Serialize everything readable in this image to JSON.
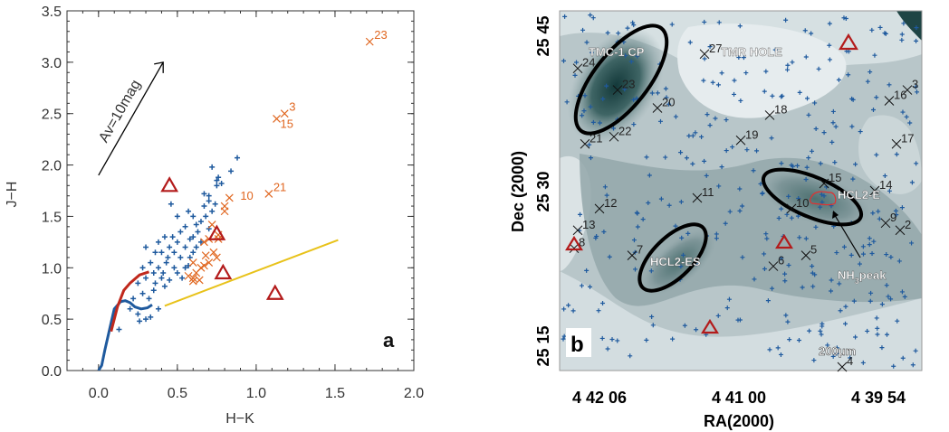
{
  "chart_data": [
    {
      "type": "scatter",
      "panel_label": "a",
      "xlabel": "H−K",
      "ylabel": "J−H",
      "xlim": [
        -0.2,
        2.0
      ],
      "ylim": [
        0.0,
        3.5
      ],
      "xticks": [
        "0.0",
        "0.5",
        "1.0",
        "1.5",
        "2.0"
      ],
      "xtick_values": [
        0.0,
        0.5,
        1.0,
        1.5,
        2.0
      ],
      "yticks": [
        "0.0",
        "0.5",
        "1.0",
        "1.5",
        "2.0",
        "2.5",
        "3.0",
        "3.5"
      ],
      "ytick_values": [
        0.0,
        0.5,
        1.0,
        1.5,
        2.0,
        2.5,
        3.0,
        3.5
      ],
      "reddening_vector": {
        "label": "Av=10mag",
        "from": [
          0.0,
          1.9
        ],
        "to": [
          0.41,
          3.0
        ]
      },
      "colors": {
        "field": "#1f5a9e",
        "yso": "#e0661f",
        "triangle": "#b31b1b",
        "dwarf": "#1f5a9e",
        "giant": "#c0281c",
        "ctts": "#e8c21a"
      },
      "series": [
        {
          "name": "field stars",
          "marker": "plus",
          "points": [
            [
              0.13,
              0.4
            ],
            [
              0.25,
              0.55
            ],
            [
              0.3,
              0.5
            ],
            [
              0.2,
              0.6
            ],
            [
              0.26,
              0.48
            ],
            [
              0.33,
              0.52
            ],
            [
              0.38,
              0.6
            ],
            [
              0.22,
              0.7
            ],
            [
              0.28,
              0.75
            ],
            [
              0.32,
              0.7
            ],
            [
              0.35,
              0.78
            ],
            [
              0.25,
              0.85
            ],
            [
              0.3,
              0.9
            ],
            [
              0.35,
              0.95
            ],
            [
              0.4,
              0.9
            ],
            [
              0.42,
              0.82
            ],
            [
              0.45,
              0.88
            ],
            [
              0.28,
              1.0
            ],
            [
              0.33,
              1.05
            ],
            [
              0.38,
              1.0
            ],
            [
              0.43,
              1.05
            ],
            [
              0.48,
              1.0
            ],
            [
              0.5,
              0.95
            ],
            [
              0.52,
              1.1
            ],
            [
              0.4,
              1.15
            ],
            [
              0.45,
              1.2
            ],
            [
              0.5,
              1.25
            ],
            [
              0.55,
              1.2
            ],
            [
              0.58,
              1.1
            ],
            [
              0.6,
              1.15
            ],
            [
              0.62,
              1.2
            ],
            [
              0.47,
              1.3
            ],
            [
              0.52,
              1.35
            ],
            [
              0.55,
              1.4
            ],
            [
              0.6,
              1.3
            ],
            [
              0.63,
              1.35
            ],
            [
              0.65,
              1.45
            ],
            [
              0.5,
              1.5
            ],
            [
              0.57,
              1.55
            ],
            [
              0.6,
              1.5
            ],
            [
              0.67,
              1.6
            ],
            [
              0.7,
              1.65
            ],
            [
              0.72,
              1.55
            ],
            [
              0.46,
              1.62
            ],
            [
              0.36,
              1.15
            ],
            [
              0.3,
              1.2
            ],
            [
              0.42,
              1.3
            ],
            [
              0.38,
              1.25
            ],
            [
              0.55,
              1.0
            ],
            [
              0.48,
              1.15
            ],
            [
              0.36,
              0.85
            ],
            [
              0.41,
              0.95
            ],
            [
              0.53,
              0.9
            ],
            [
              0.44,
              1.1
            ],
            [
              0.58,
              1.28
            ],
            [
              0.62,
              1.42
            ],
            [
              0.68,
              1.5
            ],
            [
              0.7,
              1.38
            ],
            [
              0.65,
              1.25
            ],
            [
              0.57,
              1.02
            ],
            [
              0.75,
              1.85
            ],
            [
              0.76,
              1.88
            ],
            [
              0.78,
              1.82
            ],
            [
              0.72,
              1.98
            ],
            [
              0.88,
              2.07
            ],
            [
              0.84,
              1.94
            ],
            [
              0.75,
              1.8
            ],
            [
              0.67,
              1.72
            ],
            [
              0.7,
              1.7
            ],
            [
              0.74,
              1.62
            ]
          ]
        },
        {
          "name": "YSO candidates",
          "marker": "x",
          "points": [
            [
              1.72,
              3.2
            ],
            [
              1.18,
              2.5
            ],
            [
              1.13,
              2.45
            ],
            [
              0.83,
              1.68
            ],
            [
              1.08,
              1.72
            ],
            [
              0.8,
              1.6
            ],
            [
              0.8,
              1.55
            ],
            [
              0.72,
              1.42
            ],
            [
              0.76,
              1.32
            ],
            [
              0.7,
              1.28
            ],
            [
              0.76,
              1.28
            ],
            [
              0.67,
              1.25
            ],
            [
              0.73,
              1.15
            ],
            [
              0.68,
              1.12
            ],
            [
              0.6,
              1.05
            ],
            [
              0.65,
              1.0
            ],
            [
              0.7,
              1.05
            ],
            [
              0.67,
              1.02
            ],
            [
              0.75,
              1.1
            ],
            [
              0.57,
              0.92
            ],
            [
              0.62,
              0.95
            ],
            [
              0.6,
              0.9
            ],
            [
              0.64,
              0.88
            ],
            [
              0.6,
              0.87
            ]
          ],
          "labels": [
            {
              "text": "23",
              "at": [
                1.72,
                3.2
              ]
            },
            {
              "text": "3",
              "at": [
                1.18,
                2.5
              ]
            },
            {
              "text": "15",
              "at": [
                1.13,
                2.45
              ]
            },
            {
              "text": "10",
              "at": [
                0.83,
                1.68
              ]
            },
            {
              "text": "21",
              "at": [
                1.08,
                1.72
              ]
            }
          ]
        },
        {
          "name": "triangles",
          "marker": "triangle",
          "points": [
            [
              0.45,
              1.8
            ],
            [
              0.75,
              1.33
            ],
            [
              0.79,
              0.95
            ],
            [
              1.12,
              0.75
            ]
          ]
        },
        {
          "name": "dwarf locus",
          "type": "line",
          "points": [
            [
              0.0,
              0.0
            ],
            [
              0.02,
              0.05
            ],
            [
              0.04,
              0.2
            ],
            [
              0.07,
              0.4
            ],
            [
              0.1,
              0.6
            ],
            [
              0.14,
              0.67
            ],
            [
              0.17,
              0.68
            ],
            [
              0.2,
              0.66
            ],
            [
              0.23,
              0.62
            ],
            [
              0.27,
              0.6
            ],
            [
              0.31,
              0.61
            ],
            [
              0.34,
              0.64
            ]
          ]
        },
        {
          "name": "giant locus",
          "type": "line",
          "points": [
            [
              0.08,
              0.38
            ],
            [
              0.12,
              0.62
            ],
            [
              0.16,
              0.78
            ],
            [
              0.2,
              0.85
            ],
            [
              0.26,
              0.93
            ],
            [
              0.32,
              0.96
            ]
          ]
        },
        {
          "name": "CTTS locus",
          "type": "line",
          "points": [
            [
              0.42,
              0.63
            ],
            [
              1.52,
              1.27
            ]
          ]
        }
      ]
    },
    {
      "type": "map",
      "panel_label": "b",
      "xlabel": "RA(2000)",
      "ylabel": "Dec (2000)",
      "xticks": [
        "4 42 06",
        "4 41 00",
        "4 39 54"
      ],
      "yticks": [
        "25 15",
        "25 30",
        "25 45"
      ],
      "band_label": "200μm",
      "regions": [
        "TMC-1  CP",
        "TMR  HOLE",
        "HCL2-E",
        "HCL2-ES"
      ],
      "annotation": {
        "text": "NH",
        "subscript": "3",
        "suffix": "peak"
      },
      "sources": [
        {
          "id": "2",
          "at": [
            0.94,
            0.39
          ]
        },
        {
          "id": "3",
          "at": [
            0.96,
            0.78
          ]
        },
        {
          "id": "4",
          "at": [
            0.78,
            0.01
          ]
        },
        {
          "id": "5",
          "at": [
            0.68,
            0.32
          ]
        },
        {
          "id": "6",
          "at": [
            0.59,
            0.29
          ]
        },
        {
          "id": "7",
          "at": [
            0.2,
            0.32
          ]
        },
        {
          "id": "8",
          "at": [
            0.04,
            0.34
          ]
        },
        {
          "id": "9",
          "at": [
            0.9,
            0.41
          ]
        },
        {
          "id": "10",
          "at": [
            0.64,
            0.45
          ]
        },
        {
          "id": "11",
          "at": [
            0.38,
            0.48
          ]
        },
        {
          "id": "12",
          "at": [
            0.11,
            0.45
          ]
        },
        {
          "id": "13",
          "at": [
            0.05,
            0.39
          ]
        },
        {
          "id": "14",
          "at": [
            0.87,
            0.5
          ]
        },
        {
          "id": "15",
          "at": [
            0.73,
            0.52
          ]
        },
        {
          "id": "16",
          "at": [
            0.91,
            0.75
          ]
        },
        {
          "id": "17",
          "at": [
            0.93,
            0.63
          ]
        },
        {
          "id": "18",
          "at": [
            0.58,
            0.71
          ]
        },
        {
          "id": "19",
          "at": [
            0.5,
            0.64
          ]
        },
        {
          "id": "20",
          "at": [
            0.27,
            0.73
          ]
        },
        {
          "id": "21",
          "at": [
            0.07,
            0.63
          ]
        },
        {
          "id": "22",
          "at": [
            0.15,
            0.65
          ]
        },
        {
          "id": "23",
          "at": [
            0.16,
            0.78
          ]
        },
        {
          "id": "24",
          "at": [
            0.05,
            0.84
          ]
        },
        {
          "id": "27",
          "at": [
            0.4,
            0.88
          ]
        }
      ]
    }
  ]
}
